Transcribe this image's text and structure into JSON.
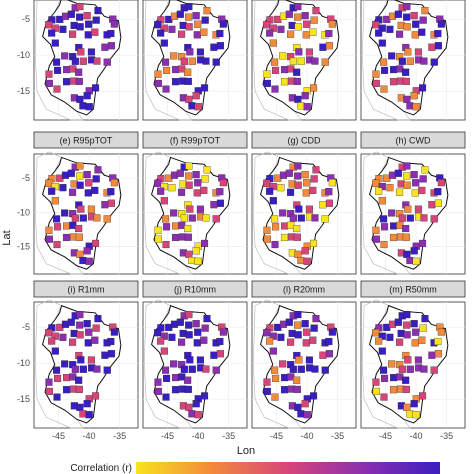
{
  "figure": {
    "x_axis_title": "Lon",
    "y_axis_title": "Lat",
    "x_ticks": [
      "-45",
      "-40",
      "-35"
    ],
    "y_ticks": [
      "-5",
      "-10",
      "-15"
    ],
    "legend_title": "Correlation (r)"
  },
  "colors": {
    "low": "#3a1ec1",
    "mid_low": "#8b2fb0",
    "mid": "#d6457a",
    "mid_high": "#f28a3c",
    "high": "#f9e21e",
    "region_border": "#111111",
    "neighbor_border": "#bfbfbf",
    "strip_fill": "#d9d9d9",
    "grid": "#ebebeb"
  },
  "panels": [
    {
      "label": "",
      "correlation_level": 0.15
    },
    {
      "label": "",
      "correlation_level": 0.35
    },
    {
      "label": "",
      "correlation_level": 0.55
    },
    {
      "label": "",
      "correlation_level": 0.35
    },
    {
      "label": "(e) R95pTOT",
      "correlation_level": 0.4
    },
    {
      "label": "(f) R99pTOT",
      "correlation_level": 0.6
    },
    {
      "label": "(g) CDD",
      "correlation_level": 0.55
    },
    {
      "label": "(h) CWD",
      "correlation_level": 0.5
    },
    {
      "label": "(i) R1mm",
      "correlation_level": 0.15
    },
    {
      "label": "(j) R10mm",
      "correlation_level": 0.15
    },
    {
      "label": "(l) R20mm",
      "correlation_level": 0.3
    },
    {
      "label": "(m) R50mm",
      "correlation_level": 0.4
    }
  ]
}
